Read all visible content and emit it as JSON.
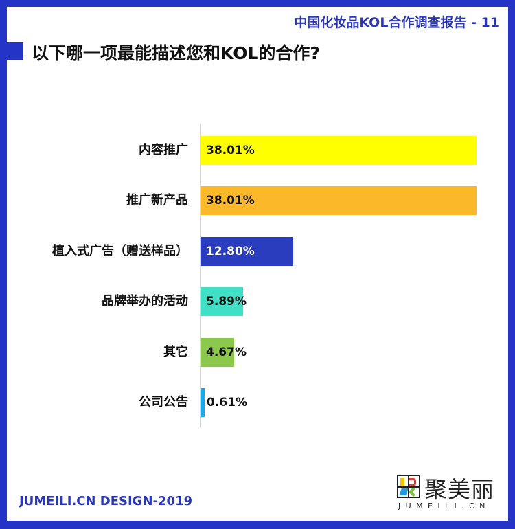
{
  "header": {
    "report_title": "中国化妆品KOL合作调查报告 - 11",
    "question": "以下哪一项最能描述您和KOL的合作?"
  },
  "footer": {
    "credit": "JUMEILI.CN DESIGN-2019",
    "logo_cn": "聚美丽",
    "logo_en": "JUMEILI.CN"
  },
  "colors": {
    "frame": "#2434C6",
    "accent_text": "#2A37B8"
  },
  "chart_data": {
    "type": "bar",
    "orientation": "horizontal",
    "title": "以下哪一项最能描述您和KOL的合作?",
    "xlabel": "",
    "ylabel": "",
    "categories": [
      "内容推广",
      "推广新产品",
      "植入式广告（赠送样品）",
      "品牌举办的活动",
      "其它",
      "公司公告"
    ],
    "values": [
      38.01,
      38.01,
      12.8,
      5.89,
      4.67,
      0.61
    ],
    "labels": [
      "38.01%",
      "38.01%",
      "12.80%",
      "5.89%",
      "4.67%",
      "0.61%"
    ],
    "bar_colors": [
      "#FFFF00",
      "#FBB829",
      "#2A3DBF",
      "#40E0C6",
      "#8CC84B",
      "#1BA8E6"
    ],
    "label_colors": [
      "#111111",
      "#111111",
      "#FFFFFF",
      "#111111",
      "#111111",
      "#111111"
    ],
    "xlim": [
      0,
      38.01
    ],
    "grid": false,
    "legend": "none"
  }
}
